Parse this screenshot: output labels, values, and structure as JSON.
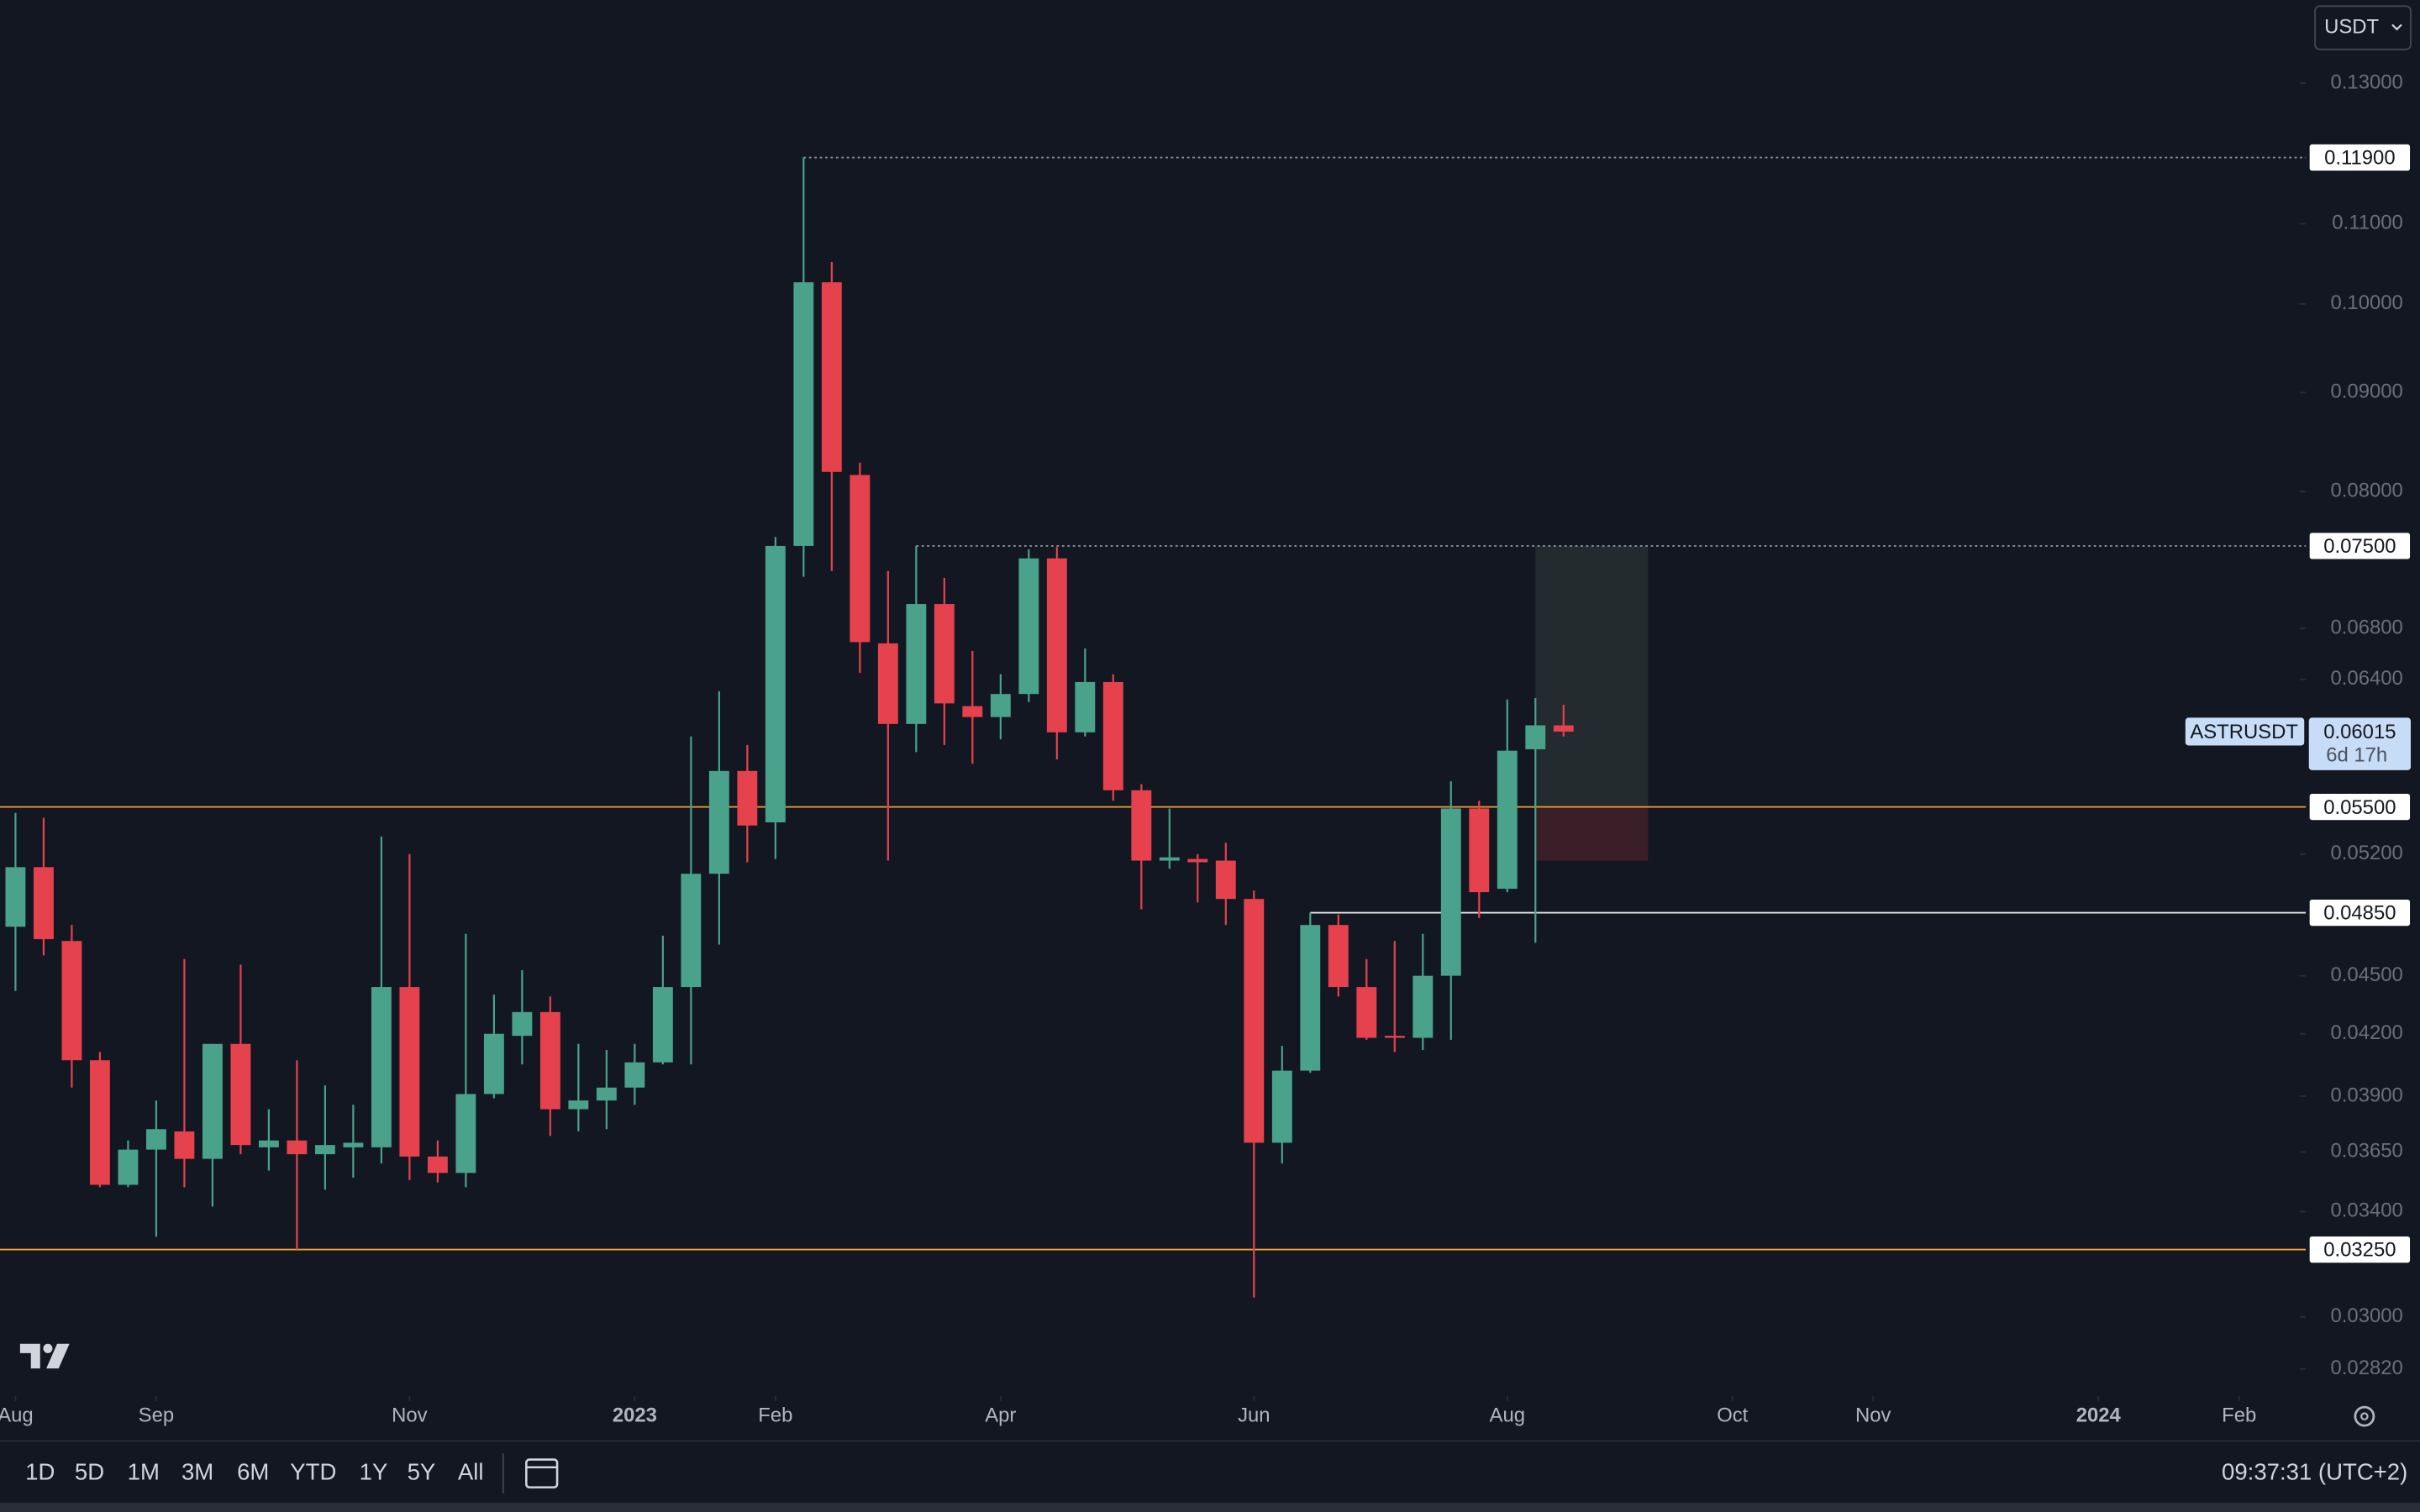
{
  "currency": "USDT",
  "toolbar": {
    "ranges": [
      "1D",
      "5D",
      "1M",
      "3M",
      "6M",
      "YTD",
      "1Y",
      "5Y",
      "All"
    ],
    "time": "09:37:31 (UTC+2)"
  },
  "chart_data": {
    "type": "candlestick",
    "log_scale": true,
    "up_color": "#4aa28a",
    "down_color": "#e5424e",
    "ylim": [
      0.0273,
      0.1435
    ],
    "yticks": [
      {
        "value": 0.13,
        "label": "0.13000"
      },
      {
        "value": 0.11,
        "label": "0.11000"
      },
      {
        "value": 0.1,
        "label": "0.10000"
      },
      {
        "value": 0.09,
        "label": "0.09000"
      },
      {
        "value": 0.08,
        "label": "0.08000"
      },
      {
        "value": 0.068,
        "label": "0.06800"
      },
      {
        "value": 0.064,
        "label": "0.06400"
      },
      {
        "value": 0.052,
        "label": "0.05200"
      },
      {
        "value": 0.045,
        "label": "0.04500"
      },
      {
        "value": 0.042,
        "label": "0.04200"
      },
      {
        "value": 0.039,
        "label": "0.03900"
      },
      {
        "value": 0.0365,
        "label": "0.03650"
      },
      {
        "value": 0.034,
        "label": "0.03400"
      },
      {
        "value": 0.03,
        "label": "0.03000"
      },
      {
        "value": 0.0282,
        "label": "0.02820"
      }
    ],
    "xlim": [
      -0.55,
      81.15
    ],
    "xticks": [
      {
        "value": 0,
        "label": "Aug"
      },
      {
        "value": 5,
        "label": "Sep"
      },
      {
        "value": 14,
        "label": "Nov"
      },
      {
        "value": 22,
        "label": "2023"
      },
      {
        "value": 27,
        "label": "Feb"
      },
      {
        "value": 35,
        "label": "Apr"
      },
      {
        "value": 44,
        "label": "Jun"
      },
      {
        "value": 53,
        "label": "Aug"
      },
      {
        "value": 61,
        "label": "Oct"
      },
      {
        "value": 66,
        "label": "Nov"
      },
      {
        "value": 74,
        "label": "2024"
      },
      {
        "value": 79,
        "label": "Feb"
      }
    ],
    "open": [
      0.0477,
      0.0512,
      0.0469,
      0.0407,
      0.0351,
      0.0366,
      0.0374,
      0.0362,
      0.0415,
      0.0367,
      0.037,
      0.0364,
      0.0367,
      0.0367,
      0.0444,
      0.0363,
      0.0356,
      0.0391,
      0.0419,
      0.0431,
      0.0384,
      0.0388,
      0.0394,
      0.0406,
      0.0444,
      0.0508,
      0.0574,
      0.054,
      0.075,
      0.1026,
      0.0816,
      0.0668,
      0.0607,
      0.07,
      0.062,
      0.0612,
      0.0629,
      0.0739,
      0.0601,
      0.0638,
      0.0561,
      0.0516,
      0.0517,
      0.0516,
      0.0493,
      0.0369,
      0.0402,
      0.0478,
      0.0444,
      0.0419,
      0.0418,
      0.045,
      0.0549,
      0.0499,
      0.0589,
      0.0606
    ],
    "high": [
      0.0546,
      0.0543,
      0.0478,
      0.0411,
      0.037,
      0.0388,
      0.0459,
      0.0415,
      0.0456,
      0.0384,
      0.0407,
      0.0395,
      0.0386,
      0.0531,
      0.052,
      0.037,
      0.0473,
      0.044,
      0.0453,
      0.0439,
      0.0415,
      0.0412,
      0.0415,
      0.0472,
      0.0598,
      0.0631,
      0.0592,
      0.0758,
      0.119,
      0.1051,
      0.0828,
      0.0728,
      0.075,
      0.0722,
      0.0662,
      0.0644,
      0.0747,
      0.0749,
      0.0664,
      0.0644,
      0.0565,
      0.0549,
      0.052,
      0.0527,
      0.0498,
      0.0414,
      0.0485,
      0.0484,
      0.0459,
      0.0469,
      0.0473,
      0.0567,
      0.0554,
      0.0625,
      0.0626,
      0.0621
    ],
    "low": [
      0.0442,
      0.0461,
      0.0394,
      0.035,
      0.035,
      0.033,
      0.035,
      0.0342,
      0.0364,
      0.0357,
      0.0325,
      0.0349,
      0.0354,
      0.036,
      0.0353,
      0.0352,
      0.035,
      0.0389,
      0.0405,
      0.0372,
      0.0374,
      0.0375,
      0.0386,
      0.0405,
      0.0405,
      0.0467,
      0.0515,
      0.0517,
      0.0723,
      0.0728,
      0.0645,
      0.0516,
      0.0587,
      0.0592,
      0.0579,
      0.0596,
      0.0623,
      0.0582,
      0.0598,
      0.0554,
      0.0487,
      0.0511,
      0.0491,
      0.0478,
      0.0307,
      0.036,
      0.0401,
      0.0439,
      0.0417,
      0.0411,
      0.0412,
      0.0417,
      0.0482,
      0.0497,
      0.0468,
      0.0598
    ],
    "close": [
      0.0512,
      0.047,
      0.0407,
      0.0351,
      0.0366,
      0.0375,
      0.0362,
      0.0415,
      0.0368,
      0.037,
      0.0364,
      0.0368,
      0.0369,
      0.0444,
      0.0363,
      0.0356,
      0.0391,
      0.042,
      0.0431,
      0.0384,
      0.0388,
      0.0394,
      0.0406,
      0.0444,
      0.0508,
      0.0574,
      0.0538,
      0.075,
      0.1026,
      0.0819,
      0.0669,
      0.0607,
      0.07,
      0.0622,
      0.0612,
      0.0629,
      0.0739,
      0.0601,
      0.0638,
      0.0561,
      0.0516,
      0.0518,
      0.0515,
      0.0493,
      0.0369,
      0.0402,
      0.0478,
      0.0444,
      0.0418,
      0.0418,
      0.045,
      0.0549,
      0.0497,
      0.0588,
      0.0606,
      0.06015
    ],
    "levels": [
      {
        "value": 0.119,
        "label": "0.11900",
        "color": "#8a8f9c",
        "style": "dotted"
      },
      {
        "value": 0.075,
        "label": "0.07500",
        "color": "#8a8f9c",
        "style": "dotted"
      },
      {
        "value": 0.055,
        "label": "0.05500",
        "color": "#f0a030",
        "style": "solid"
      },
      {
        "value": 0.0485,
        "label": "0.04850",
        "color": "#e8e8e8",
        "style": "solid"
      },
      {
        "value": 0.0325,
        "label": "0.03250",
        "color": "#f0a030",
        "style": "solid"
      }
    ],
    "position": {
      "target": 0.075,
      "entry": 0.055,
      "stop": 0.0516
    },
    "last": {
      "symbol": "ASTRUSDT",
      "price": {
        "value": 0.06015,
        "label": "0.06015"
      },
      "countdown": "6d 17h"
    }
  }
}
